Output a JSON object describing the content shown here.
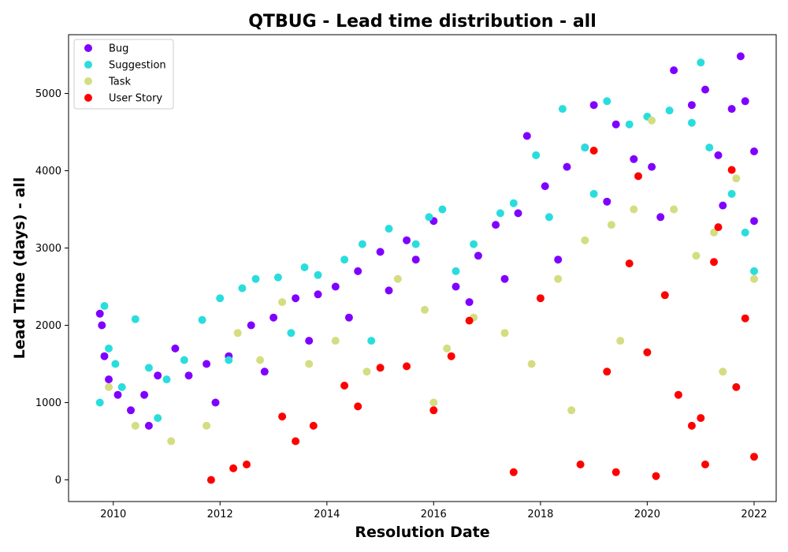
{
  "chart_data": {
    "type": "scatter",
    "title": "QTBUG - Lead time distribution - all",
    "xlabel": "Resolution Date",
    "ylabel": "Lead Time (days) - all",
    "xlim": [
      "2009-03-01",
      "2022-06-01"
    ],
    "ylim": [
      -280,
      5760
    ],
    "xticks": [
      {
        "label": "2010",
        "value": "2010-01-01"
      },
      {
        "label": "2012",
        "value": "2012-01-01"
      },
      {
        "label": "2014",
        "value": "2014-01-01"
      },
      {
        "label": "2016",
        "value": "2016-01-01"
      },
      {
        "label": "2018",
        "value": "2018-01-01"
      },
      {
        "label": "2020",
        "value": "2020-01-01"
      },
      {
        "label": "2022",
        "value": "2022-01-01"
      }
    ],
    "yticks": [
      0,
      1000,
      2000,
      3000,
      4000,
      5000
    ],
    "legend_position": "top-left",
    "grid": false,
    "series": [
      {
        "name": "Bug",
        "color": "#8000ff",
        "points": [
          [
            "2009-10-01",
            2150
          ],
          [
            "2009-10-15",
            2000
          ],
          [
            "2009-11-01",
            1600
          ],
          [
            "2009-12-01",
            1300
          ],
          [
            "2010-02-01",
            1100
          ],
          [
            "2010-05-01",
            900
          ],
          [
            "2010-08-01",
            1100
          ],
          [
            "2010-11-01",
            1350
          ],
          [
            "2011-03-01",
            1700
          ],
          [
            "2011-06-01",
            1350
          ],
          [
            "2011-10-01",
            1500
          ],
          [
            "2012-03-01",
            1600
          ],
          [
            "2012-08-01",
            2000
          ],
          [
            "2013-01-01",
            2100
          ],
          [
            "2013-06-01",
            2350
          ],
          [
            "2013-11-01",
            2400
          ],
          [
            "2014-03-01",
            2500
          ],
          [
            "2014-08-01",
            2700
          ],
          [
            "2015-01-01",
            2950
          ],
          [
            "2015-07-01",
            3100
          ],
          [
            "2015-09-01",
            2850
          ],
          [
            "2016-01-01",
            3350
          ],
          [
            "2016-06-01",
            2500
          ],
          [
            "2016-11-01",
            2900
          ],
          [
            "2017-03-01",
            3300
          ],
          [
            "2017-08-01",
            3450
          ],
          [
            "2017-10-01",
            4450
          ],
          [
            "2018-02-01",
            3800
          ],
          [
            "2018-07-01",
            4050
          ],
          [
            "2018-11-01",
            4300
          ],
          [
            "2019-01-01",
            4850
          ],
          [
            "2019-06-01",
            4600
          ],
          [
            "2019-10-01",
            4150
          ],
          [
            "2020-02-01",
            4050
          ],
          [
            "2020-07-01",
            5300
          ],
          [
            "2020-11-01",
            4850
          ],
          [
            "2021-02-01",
            5050
          ],
          [
            "2021-05-01",
            4200
          ],
          [
            "2021-08-01",
            4800
          ],
          [
            "2021-10-01",
            5480
          ],
          [
            "2021-11-01",
            4900
          ],
          [
            "2022-01-01",
            4250
          ],
          [
            "2022-01-01",
            3350
          ],
          [
            "2021-06-01",
            3550
          ],
          [
            "2020-04-01",
            3400
          ],
          [
            "2019-04-01",
            3600
          ],
          [
            "2018-05-01",
            2850
          ],
          [
            "2017-05-01",
            2600
          ],
          [
            "2016-09-01",
            2300
          ],
          [
            "2015-03-01",
            2450
          ],
          [
            "2014-06-01",
            2100
          ],
          [
            "2013-09-01",
            1800
          ],
          [
            "2012-11-01",
            1400
          ],
          [
            "2011-12-01",
            1000
          ],
          [
            "2010-09-01",
            700
          ]
        ]
      },
      {
        "name": "Suggestion",
        "color": "#2adddd",
        "points": [
          [
            "2009-11-01",
            2250
          ],
          [
            "2009-12-01",
            1700
          ],
          [
            "2010-01-15",
            1500
          ],
          [
            "2010-03-01",
            1200
          ],
          [
            "2010-06-01",
            2080
          ],
          [
            "2010-09-01",
            1450
          ],
          [
            "2011-01-01",
            1300
          ],
          [
            "2011-05-01",
            1550
          ],
          [
            "2011-09-01",
            2070
          ],
          [
            "2012-01-01",
            2350
          ],
          [
            "2012-06-01",
            2480
          ],
          [
            "2012-09-01",
            2600
          ],
          [
            "2013-02-01",
            2620
          ],
          [
            "2013-08-01",
            2750
          ],
          [
            "2013-11-01",
            2650
          ],
          [
            "2014-05-01",
            2850
          ],
          [
            "2014-09-01",
            3050
          ],
          [
            "2015-03-01",
            3250
          ],
          [
            "2015-09-01",
            3050
          ],
          [
            "2015-12-01",
            3400
          ],
          [
            "2016-03-01",
            3500
          ],
          [
            "2016-10-01",
            3050
          ],
          [
            "2017-04-01",
            3450
          ],
          [
            "2017-07-01",
            3580
          ],
          [
            "2017-12-01",
            4200
          ],
          [
            "2018-06-01",
            4800
          ],
          [
            "2018-11-01",
            4300
          ],
          [
            "2019-04-01",
            4900
          ],
          [
            "2019-09-01",
            4600
          ],
          [
            "2020-01-01",
            4700
          ],
          [
            "2020-06-01",
            4780
          ],
          [
            "2020-11-01",
            4620
          ],
          [
            "2021-01-01",
            5400
          ],
          [
            "2021-03-01",
            4300
          ],
          [
            "2021-08-01",
            3700
          ],
          [
            "2021-11-01",
            3200
          ],
          [
            "2022-01-01",
            2700
          ],
          [
            "2019-01-01",
            3700
          ],
          [
            "2018-03-01",
            3400
          ],
          [
            "2016-06-01",
            2700
          ],
          [
            "2014-11-01",
            1800
          ],
          [
            "2013-05-01",
            1900
          ],
          [
            "2012-03-01",
            1550
          ],
          [
            "2010-11-01",
            800
          ],
          [
            "2009-10-01",
            1000
          ]
        ]
      },
      {
        "name": "Task",
        "color": "#d4dd80",
        "points": [
          [
            "2009-12-01",
            1200
          ],
          [
            "2010-06-01",
            700
          ],
          [
            "2011-02-01",
            500
          ],
          [
            "2011-10-01",
            700
          ],
          [
            "2012-05-01",
            1900
          ],
          [
            "2012-10-01",
            1550
          ],
          [
            "2013-03-01",
            2300
          ],
          [
            "2013-09-01",
            1500
          ],
          [
            "2014-03-01",
            1800
          ],
          [
            "2014-10-01",
            1400
          ],
          [
            "2015-05-01",
            2600
          ],
          [
            "2015-11-01",
            2200
          ],
          [
            "2016-04-01",
            1700
          ],
          [
            "2016-10-01",
            2100
          ],
          [
            "2017-05-01",
            1900
          ],
          [
            "2017-11-01",
            1500
          ],
          [
            "2018-05-01",
            2600
          ],
          [
            "2018-11-01",
            3100
          ],
          [
            "2019-05-01",
            3300
          ],
          [
            "2019-10-01",
            3500
          ],
          [
            "2020-02-01",
            4650
          ],
          [
            "2020-07-01",
            3500
          ],
          [
            "2020-12-01",
            2900
          ],
          [
            "2021-04-01",
            3200
          ],
          [
            "2021-09-01",
            3900
          ],
          [
            "2022-01-01",
            2600
          ],
          [
            "2021-06-01",
            1400
          ],
          [
            "2019-07-01",
            1800
          ],
          [
            "2018-08-01",
            900
          ],
          [
            "2016-01-01",
            1000
          ]
        ]
      },
      {
        "name": "User Story",
        "color": "#ff0000",
        "points": [
          [
            "2011-11-01",
            0
          ],
          [
            "2012-04-01",
            150
          ],
          [
            "2012-07-01",
            200
          ],
          [
            "2013-03-01",
            820
          ],
          [
            "2013-06-01",
            500
          ],
          [
            "2013-10-01",
            700
          ],
          [
            "2014-05-01",
            1220
          ],
          [
            "2014-08-01",
            950
          ],
          [
            "2015-01-01",
            1450
          ],
          [
            "2015-07-01",
            1470
          ],
          [
            "2016-01-01",
            900
          ],
          [
            "2016-05-01",
            1600
          ],
          [
            "2016-09-01",
            2060
          ],
          [
            "2017-07-01",
            100
          ],
          [
            "2018-01-01",
            2350
          ],
          [
            "2018-10-01",
            200
          ],
          [
            "2019-01-01",
            4260
          ],
          [
            "2019-04-01",
            1400
          ],
          [
            "2019-09-01",
            2800
          ],
          [
            "2019-11-01",
            3930
          ],
          [
            "2020-01-01",
            1650
          ],
          [
            "2020-05-01",
            2390
          ],
          [
            "2020-08-01",
            1100
          ],
          [
            "2020-11-01",
            700
          ],
          [
            "2021-01-01",
            800
          ],
          [
            "2021-04-01",
            2820
          ],
          [
            "2021-05-01",
            3270
          ],
          [
            "2021-08-01",
            4010
          ],
          [
            "2021-09-01",
            1200
          ],
          [
            "2021-11-01",
            2090
          ],
          [
            "2022-01-01",
            300
          ],
          [
            "2020-03-01",
            50
          ],
          [
            "2019-06-01",
            100
          ],
          [
            "2021-02-01",
            200
          ]
        ]
      }
    ]
  }
}
